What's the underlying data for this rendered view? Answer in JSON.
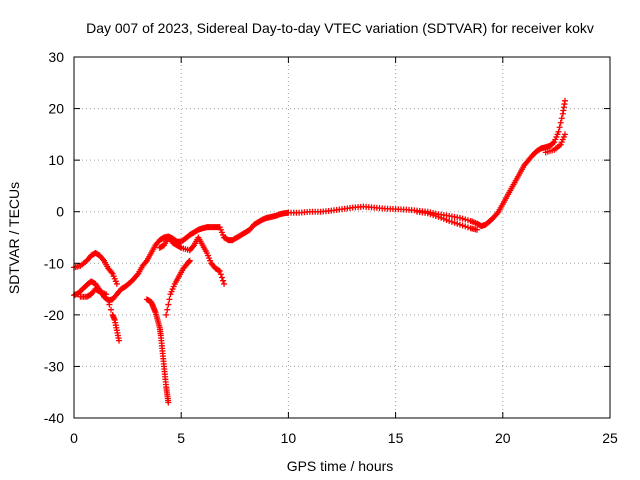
{
  "chart_data": {
    "type": "scatter",
    "title": "Day 007 of 2023, Sidereal Day-to-day VTEC variation (SDTVAR) for receiver kokv",
    "xlabel": "GPS time / hours",
    "ylabel": "SDTVAR / TECUs",
    "xlim": [
      0,
      25
    ],
    "ylim": [
      -40,
      30
    ],
    "xticks": [
      0,
      5,
      10,
      15,
      20,
      25
    ],
    "yticks": [
      -40,
      -30,
      -20,
      -10,
      0,
      10,
      20,
      30
    ],
    "xtick_labels": [
      "0",
      "5",
      "10",
      "15",
      "20",
      "25"
    ],
    "ytick_labels": [
      "-40",
      "-30",
      "-20",
      "-10",
      "0",
      "10",
      "20",
      "30"
    ],
    "grid": true,
    "marker": "+",
    "color": "#ff0000",
    "series": [
      {
        "name": "upper main arc",
        "points": [
          [
            0.0,
            -16.2
          ],
          [
            0.2,
            -15.8
          ],
          [
            0.4,
            -15.0
          ],
          [
            0.6,
            -14.2
          ],
          [
            0.8,
            -13.5
          ],
          [
            1.0,
            -14.0
          ],
          [
            1.2,
            -15.2
          ],
          [
            1.4,
            -16.5
          ],
          [
            1.6,
            -17.2
          ],
          [
            1.8,
            -17.0
          ],
          [
            2.0,
            -16.0
          ],
          [
            2.2,
            -15.0
          ],
          [
            2.4,
            -14.5
          ],
          [
            2.6,
            -13.8
          ],
          [
            2.8,
            -13.0
          ],
          [
            3.0,
            -12.0
          ],
          [
            3.2,
            -10.5
          ],
          [
            3.4,
            -9.5
          ],
          [
            3.6,
            -8.0
          ],
          [
            3.8,
            -6.5
          ],
          [
            4.0,
            -5.5
          ],
          [
            4.2,
            -5.0
          ],
          [
            4.4,
            -4.8
          ],
          [
            4.6,
            -5.2
          ],
          [
            4.8,
            -5.8
          ],
          [
            5.0,
            -5.8
          ],
          [
            5.2,
            -5.2
          ],
          [
            5.4,
            -4.5
          ],
          [
            5.6,
            -4.0
          ],
          [
            5.8,
            -3.5
          ],
          [
            6.0,
            -3.2
          ],
          [
            6.2,
            -3.0
          ],
          [
            6.4,
            -3.0
          ],
          [
            6.6,
            -3.0
          ],
          [
            6.8,
            -3.0
          ],
          [
            7.0,
            -5.0
          ],
          [
            7.2,
            -5.5
          ],
          [
            7.4,
            -5.5
          ],
          [
            7.6,
            -5.0
          ],
          [
            7.8,
            -4.5
          ],
          [
            8.0,
            -4.0
          ],
          [
            8.2,
            -3.5
          ],
          [
            8.4,
            -2.5
          ],
          [
            8.6,
            -2.0
          ],
          [
            8.8,
            -1.5
          ],
          [
            9.0,
            -1.2
          ],
          [
            9.2,
            -1.0
          ],
          [
            9.4,
            -0.8
          ],
          [
            9.6,
            -0.5
          ],
          [
            9.8,
            -0.3
          ],
          [
            10.0,
            -0.2
          ],
          [
            10.5,
            -0.2
          ],
          [
            11.0,
            0.0
          ],
          [
            11.5,
            0.0
          ],
          [
            12.0,
            0.2
          ],
          [
            12.5,
            0.5
          ],
          [
            13.0,
            0.8
          ],
          [
            13.5,
            1.0
          ],
          [
            14.0,
            0.8
          ],
          [
            14.5,
            0.6
          ],
          [
            15.0,
            0.5
          ],
          [
            15.5,
            0.4
          ],
          [
            16.0,
            0.2
          ],
          [
            16.5,
            0.0
          ],
          [
            17.0,
            -0.5
          ],
          [
            17.5,
            -0.8
          ],
          [
            18.0,
            -1.2
          ],
          [
            18.5,
            -1.8
          ],
          [
            18.8,
            -2.3
          ],
          [
            19.0,
            -2.8
          ],
          [
            19.2,
            -2.5
          ],
          [
            19.4,
            -1.8
          ],
          [
            19.6,
            -1.0
          ],
          [
            19.8,
            0.0
          ],
          [
            20.0,
            1.5
          ],
          [
            20.2,
            3.0
          ],
          [
            20.4,
            4.5
          ],
          [
            20.6,
            6.0
          ],
          [
            20.8,
            7.5
          ],
          [
            21.0,
            9.0
          ],
          [
            21.2,
            10.0
          ],
          [
            21.4,
            11.0
          ],
          [
            21.6,
            11.8
          ],
          [
            21.8,
            12.3
          ],
          [
            22.0,
            12.5
          ],
          [
            22.2,
            12.8
          ],
          [
            22.4,
            13.5
          ],
          [
            22.6,
            15.5
          ],
          [
            22.8,
            19.0
          ],
          [
            22.9,
            21.5
          ]
        ]
      },
      {
        "name": "secondary arcs",
        "points": [
          [
            0.0,
            -10.8
          ],
          [
            0.3,
            -10.5
          ],
          [
            0.6,
            -9.5
          ],
          [
            0.8,
            -8.5
          ],
          [
            1.0,
            -8.0
          ],
          [
            1.2,
            -8.5
          ],
          [
            1.4,
            -9.5
          ],
          [
            1.6,
            -11.0
          ],
          [
            1.8,
            -12.0
          ],
          [
            2.0,
            -14.0
          ],
          [
            4.0,
            -7.0
          ],
          [
            4.2,
            -6.5
          ],
          [
            4.4,
            -5.0
          ],
          [
            4.6,
            -6.0
          ],
          [
            4.8,
            -6.5
          ],
          [
            5.0,
            -7.0
          ],
          [
            5.4,
            -7.5
          ],
          [
            5.6,
            -6.5
          ],
          [
            5.8,
            -5.0
          ],
          [
            6.0,
            -6.5
          ],
          [
            6.2,
            -8.0
          ],
          [
            6.4,
            -10.0
          ],
          [
            6.6,
            -11.0
          ],
          [
            6.8,
            -11.5
          ],
          [
            7.0,
            -14.0
          ],
          [
            16.0,
            0.0
          ],
          [
            16.5,
            -0.3
          ],
          [
            17.0,
            -1.0
          ],
          [
            17.5,
            -1.8
          ],
          [
            18.0,
            -2.5
          ],
          [
            18.5,
            -3.2
          ],
          [
            18.8,
            -3.5
          ],
          [
            22.0,
            11.5
          ],
          [
            22.4,
            12.0
          ],
          [
            22.7,
            13.0
          ],
          [
            22.9,
            15.0
          ]
        ]
      },
      {
        "name": "low-elevation tails",
        "points": [
          [
            0.3,
            -16.5
          ],
          [
            0.6,
            -16.5
          ],
          [
            0.8,
            -16.0
          ],
          [
            1.0,
            -15.0
          ],
          [
            1.2,
            -15.5
          ],
          [
            1.5,
            -16.0
          ],
          [
            1.8,
            -20.0
          ],
          [
            1.9,
            -21.0
          ],
          [
            2.0,
            -23.0
          ],
          [
            2.1,
            -25.0
          ],
          [
            3.4,
            -17.0
          ],
          [
            3.6,
            -17.5
          ],
          [
            3.7,
            -18.5
          ],
          [
            3.8,
            -19.5
          ],
          [
            3.9,
            -21.0
          ],
          [
            4.0,
            -22.5
          ],
          [
            4.05,
            -24.0
          ],
          [
            4.1,
            -26.0
          ],
          [
            4.15,
            -28.0
          ],
          [
            4.2,
            -30.0
          ],
          [
            4.25,
            -32.0
          ],
          [
            4.3,
            -34.0
          ],
          [
            4.35,
            -35.5
          ],
          [
            4.4,
            -37.0
          ],
          [
            4.3,
            -20.0
          ],
          [
            4.5,
            -16.0
          ],
          [
            4.7,
            -14.0
          ],
          [
            4.9,
            -12.5
          ],
          [
            5.1,
            -11.0
          ],
          [
            5.3,
            -10.0
          ],
          [
            5.4,
            -9.5
          ]
        ]
      }
    ]
  }
}
